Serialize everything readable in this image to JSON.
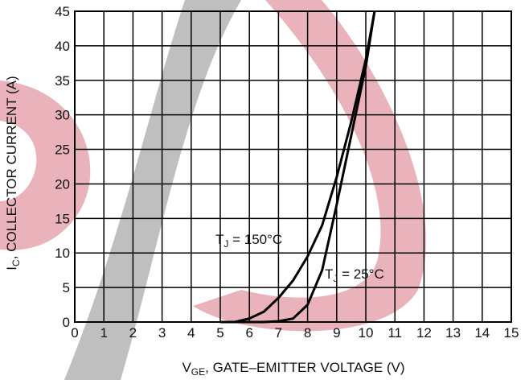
{
  "chart_data": {
    "type": "line",
    "xlabel": [
      "V",
      "GE",
      ", GATE–EMITTER VOLTAGE (V)"
    ],
    "ylabel": [
      "I",
      "C",
      ", COLLECTOR CURRENT (A)"
    ],
    "xlim": [
      0,
      15
    ],
    "xticks": [
      0,
      1,
      2,
      3,
      4,
      5,
      6,
      7,
      8,
      9,
      10,
      11,
      12,
      13,
      14,
      15
    ],
    "ylim": [
      0,
      45
    ],
    "yticks": [
      0,
      5,
      10,
      15,
      20,
      25,
      30,
      35,
      40,
      45
    ],
    "grid": true,
    "series": [
      {
        "color": "#000000",
        "x": [
          5,
          5.5,
          6,
          6.5,
          7,
          7.5,
          8,
          8.5,
          9,
          9.5,
          10,
          10.3
        ],
        "values": [
          0,
          0,
          0.5,
          1.5,
          3.5,
          6,
          9.5,
          14,
          21,
          29,
          38,
          45
        ]
      },
      {
        "color": "#000000",
        "x": [
          5,
          6.5,
          7,
          7.5,
          8,
          8.5,
          9,
          9.5,
          10,
          10.3
        ],
        "values": [
          0,
          0,
          0.1,
          0.5,
          2.5,
          7.5,
          17,
          27,
          37,
          45
        ]
      }
    ],
    "annotations": [
      {
        "text": [
          "T",
          "J",
          " = 150°C"
        ]
      },
      {
        "text": [
          "T",
          "J",
          " = 25°C"
        ]
      }
    ]
  }
}
